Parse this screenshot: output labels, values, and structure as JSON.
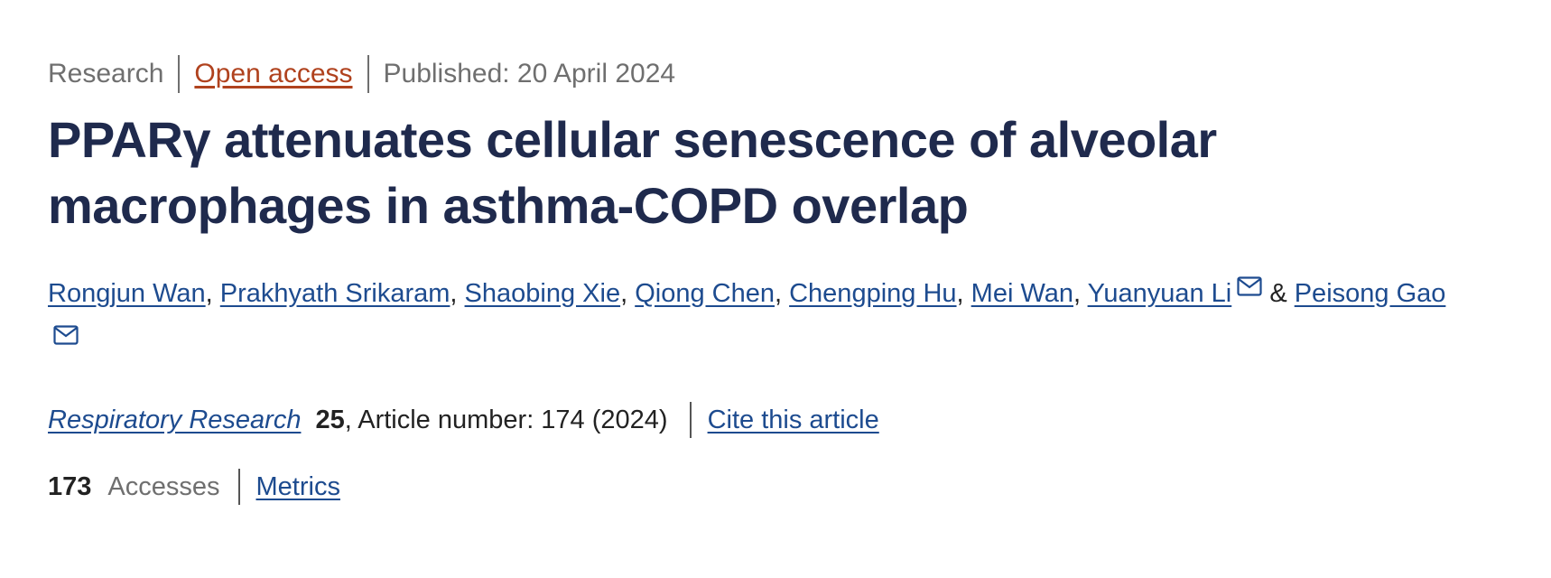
{
  "header": {
    "article_type": "Research",
    "access": "Open access",
    "published": "Published: 20 April 2024"
  },
  "title": "PPARγ attenuates cellular senescence of alveolar macrophages in asthma-COPD overlap",
  "authors": {
    "list": [
      "Rongjun Wan",
      "Prakhyath Srikaram",
      "Shaobing Xie",
      "Qiong Chen",
      "Chengping Hu",
      "Mei Wan",
      "Yuanyuan Li"
    ],
    "conjunction": "&",
    "last": "Peisong Gao"
  },
  "journal": {
    "name": "Respiratory Research",
    "volume": "25",
    "info": "Article number: 174 (2024)",
    "cite": "Cite this article"
  },
  "metrics": {
    "accesses": "173",
    "accesses_label": "Accesses",
    "link": "Metrics"
  }
}
